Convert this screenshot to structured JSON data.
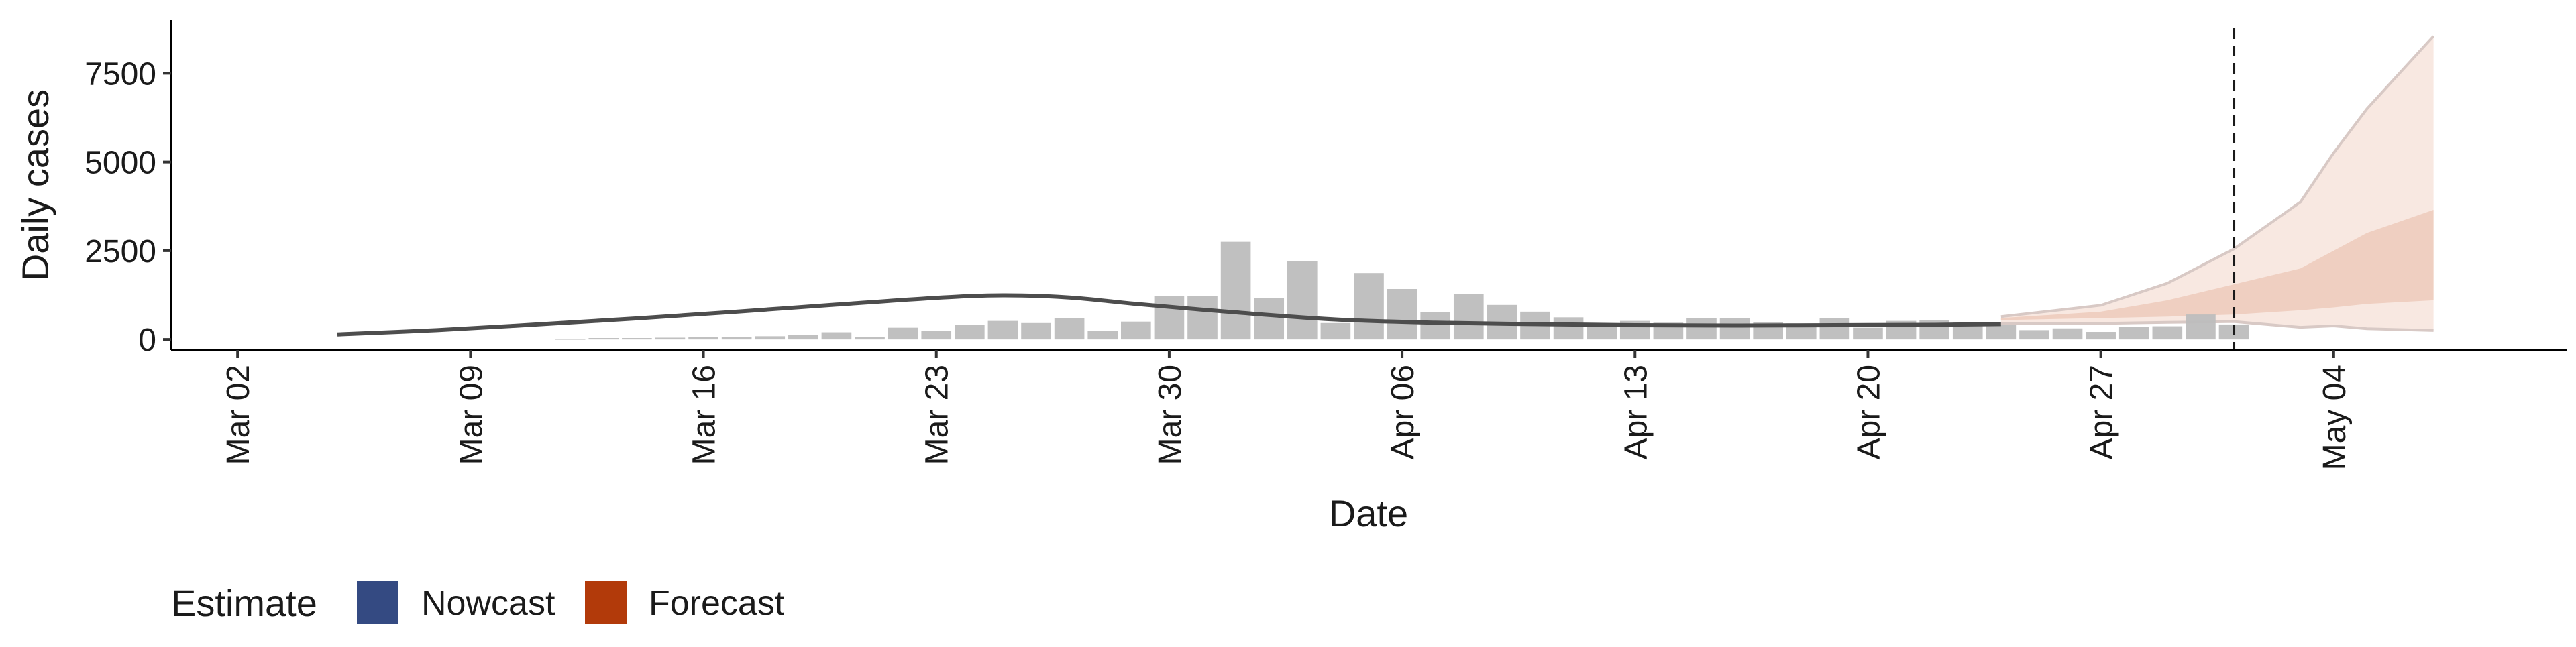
{
  "chart_data": {
    "type": "bar",
    "xlabel": "Date",
    "ylabel": "Daily cases",
    "x_axis": {
      "type": "date",
      "range": [
        "2020-02-29",
        "2020-05-11"
      ],
      "ticks": [
        "2020-03-02",
        "2020-03-09",
        "2020-03-16",
        "2020-03-23",
        "2020-03-30",
        "2020-04-06",
        "2020-04-13",
        "2020-04-20",
        "2020-04-27",
        "2020-05-04"
      ],
      "tick_labels": [
        "Mar 02",
        "Mar 09",
        "Mar 16",
        "Mar 23",
        "Mar 30",
        "Apr 06",
        "Apr 13",
        "Apr 20",
        "Apr 27",
        "May 04"
      ]
    },
    "y_axis": {
      "range": [
        -300,
        9000
      ],
      "ticks": [
        0,
        2500,
        5000,
        7500
      ],
      "tick_labels": [
        "0",
        "2500",
        "5000",
        "7500"
      ]
    },
    "grid": false,
    "legend": {
      "position": "bottom-left",
      "title": "Estimate",
      "items": [
        {
          "label": "Nowcast",
          "color": "#344A82"
        },
        {
          "label": "Forecast",
          "color": "#B23A0A"
        }
      ]
    },
    "reference_line": {
      "date": "2020-05-01",
      "style": "dashed"
    },
    "colors": {
      "bars": "#bdbdbd",
      "estimate_line": "#4d4d4d",
      "forecast_band_inner": "#efcfc1",
      "forecast_band_outer": "#f8e8e1",
      "forecast_band_edge": "#d8c9c5"
    },
    "series": [
      {
        "type": "bar",
        "dates": [
          "2020-03-12",
          "2020-03-13",
          "2020-03-14",
          "2020-03-15",
          "2020-03-16",
          "2020-03-17",
          "2020-03-18",
          "2020-03-19",
          "2020-03-20",
          "2020-03-21",
          "2020-03-22",
          "2020-03-23",
          "2020-03-24",
          "2020-03-25",
          "2020-03-26",
          "2020-03-27",
          "2020-03-28",
          "2020-03-29",
          "2020-03-30",
          "2020-03-31",
          "2020-04-01",
          "2020-04-02",
          "2020-04-03",
          "2020-04-04",
          "2020-04-05",
          "2020-04-06",
          "2020-04-07",
          "2020-04-08",
          "2020-04-09",
          "2020-04-10",
          "2020-04-11",
          "2020-04-12",
          "2020-04-13",
          "2020-04-14",
          "2020-04-15",
          "2020-04-16",
          "2020-04-17",
          "2020-04-18",
          "2020-04-19",
          "2020-04-20",
          "2020-04-21",
          "2020-04-22",
          "2020-04-23",
          "2020-04-24",
          "2020-04-25",
          "2020-04-26",
          "2020-04-27",
          "2020-04-28",
          "2020-04-29",
          "2020-04-30",
          "2020-05-01"
        ],
        "values": [
          20,
          40,
          40,
          50,
          60,
          70,
          90,
          130,
          200,
          70,
          330,
          230,
          410,
          520,
          460,
          590,
          240,
          500,
          1230,
          1220,
          2750,
          1170,
          2200,
          460,
          1870,
          1420,
          760,
          1270,
          970,
          780,
          620,
          390,
          520,
          470,
          590,
          600,
          480,
          450,
          590,
          330,
          520,
          540,
          480,
          400,
          260,
          310,
          210,
          360,
          370,
          700,
          420
        ]
      },
      {
        "type": "line",
        "name": "",
        "dates": [
          "2020-03-05",
          "2020-03-08",
          "2020-03-11",
          "2020-03-14",
          "2020-03-17",
          "2020-03-20",
          "2020-03-23",
          "2020-03-25",
          "2020-03-27",
          "2020-03-29",
          "2020-04-01",
          "2020-04-04",
          "2020-04-07",
          "2020-04-10",
          "2020-04-13",
          "2020-04-16",
          "2020-04-19",
          "2020-04-22",
          "2020-04-24"
        ],
        "values": [
          140,
          260,
          420,
          590,
          780,
          980,
          1170,
          1240,
          1180,
          1000,
          760,
          560,
          470,
          430,
          400,
          390,
          400,
          410,
          430
        ]
      },
      {
        "type": "ribbon",
        "level": "outer",
        "dates": [
          "2020-04-24",
          "2020-04-27",
          "2020-04-29",
          "2020-05-01",
          "2020-05-03",
          "2020-05-04",
          "2020-05-05",
          "2020-05-07"
        ],
        "lower": [
          440,
          450,
          480,
          500,
          340,
          380,
          300,
          250
        ],
        "upper": [
          640,
          960,
          1580,
          2550,
          3870,
          5260,
          6500,
          8550
        ]
      },
      {
        "type": "ribbon",
        "level": "inner",
        "dates": [
          "2020-04-24",
          "2020-04-27",
          "2020-04-29",
          "2020-05-01",
          "2020-05-03",
          "2020-05-04",
          "2020-05-05",
          "2020-05-07"
        ],
        "lower": [
          540,
          600,
          640,
          700,
          820,
          900,
          1000,
          1100
        ],
        "upper": [
          600,
          780,
          1100,
          1550,
          2000,
          2500,
          3000,
          3650
        ]
      }
    ]
  }
}
